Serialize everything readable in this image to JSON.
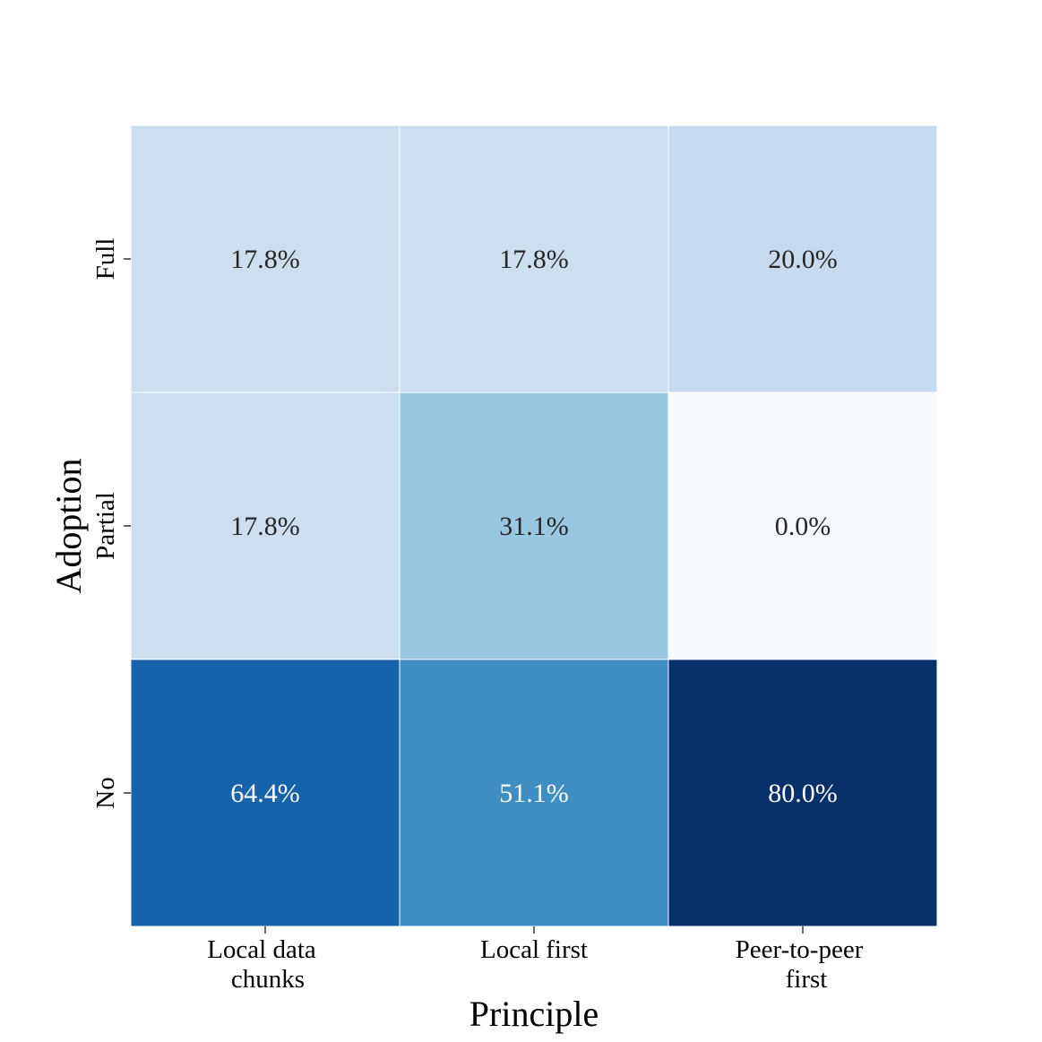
{
  "chart_data": {
    "type": "heatmap",
    "title": "",
    "xlabel": "Principle",
    "ylabel": "Adoption",
    "x_categories": [
      {
        "line1": "Local data",
        "line2": "chunks"
      },
      {
        "line1": "Local first",
        "line2": ""
      },
      {
        "line1": "Peer-to-peer",
        "line2": "first"
      }
    ],
    "y_categories": [
      "Full",
      "Partial",
      "No"
    ],
    "values": [
      [
        17.8,
        17.8,
        20.0
      ],
      [
        17.8,
        31.1,
        0.0
      ],
      [
        64.4,
        51.1,
        80.0
      ]
    ],
    "value_labels": [
      [
        "17.8%",
        "17.8%",
        "20.0%"
      ],
      [
        "17.8%",
        "31.1%",
        "0.0%"
      ],
      [
        "64.4%",
        "51.1%",
        "80.0%"
      ]
    ],
    "colormap": "Blues",
    "vmin": 0,
    "vmax": 80
  }
}
